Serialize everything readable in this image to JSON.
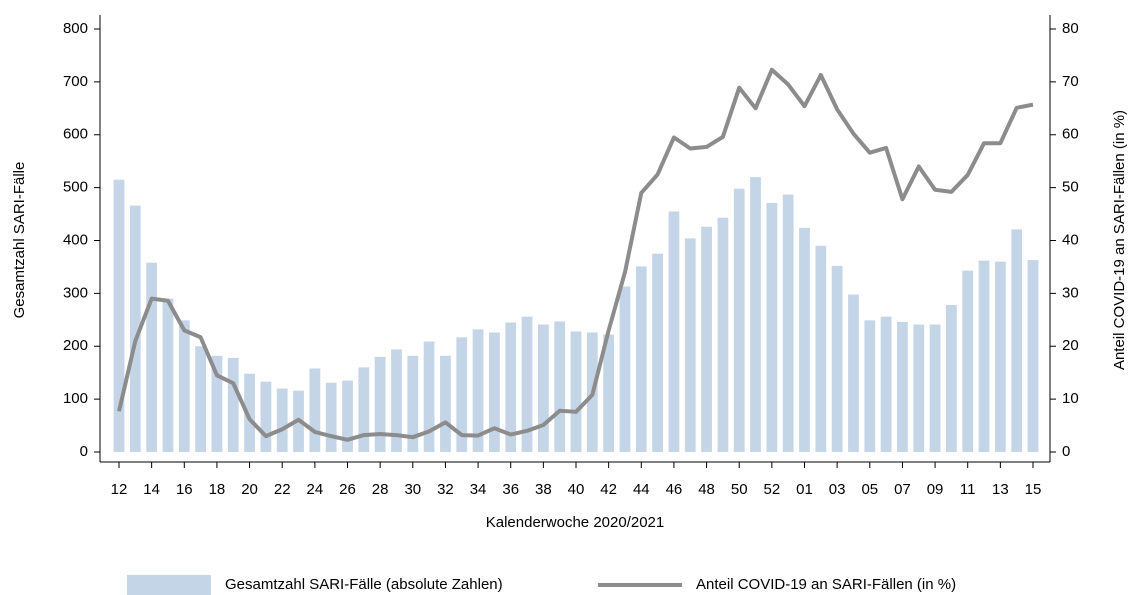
{
  "chart_data": {
    "type": "bar-line",
    "x_label": "Kalenderwoche 2020/2021",
    "y_label": "Gesamtzahl SARI-Fälle",
    "y2_label": "Anteil COVID-19 an SARI-Fällen (in %)",
    "categories": [
      "12",
      null,
      "14",
      null,
      "16",
      null,
      "18",
      null,
      "20",
      null,
      "22",
      null,
      "24",
      null,
      "26",
      null,
      "28",
      null,
      "30",
      null,
      "32",
      null,
      "34",
      null,
      "36",
      null,
      "38",
      null,
      "40",
      null,
      "42",
      null,
      "44",
      null,
      "46",
      null,
      "48",
      null,
      "50",
      null,
      "52",
      null,
      "01",
      null,
      "03",
      null,
      "05",
      null,
      "07",
      null,
      "09",
      null,
      "11",
      null,
      "13",
      null,
      "15"
    ],
    "series": [
      {
        "name": "Gesamtzahl SARI-Fälle (absolute Zahlen)",
        "type": "bar",
        "color": "#c5d5e8",
        "values": [
          515,
          466,
          358,
          290,
          249,
          200,
          182,
          178,
          148,
          133,
          120,
          116,
          158,
          131,
          135,
          160,
          180,
          194,
          182,
          209,
          182,
          217,
          232,
          226,
          245,
          256,
          241,
          247,
          228,
          226,
          222,
          313,
          351,
          375,
          455,
          404,
          426,
          443,
          498,
          520,
          471,
          487,
          424,
          390,
          352,
          298,
          249,
          256,
          246,
          241,
          241,
          278,
          343,
          362,
          360,
          421,
          363
        ]
      },
      {
        "name": "Anteil COVID-19 an SARI-Fällen (in %)",
        "type": "line",
        "axis": "y2",
        "color": "#8c8c8c",
        "values": [
          7.7,
          21,
          29,
          28.6,
          23,
          21.7,
          14.5,
          13,
          6.2,
          3,
          4.3,
          6.1,
          3.8,
          3,
          2.3,
          3.2,
          3.4,
          3.2,
          2.8,
          3.9,
          5.6,
          3.2,
          3.1,
          4.5,
          3.3,
          4,
          5.1,
          7.8,
          7.6,
          10.8,
          23,
          34,
          49,
          52.5,
          59.5,
          57.4,
          57.7,
          59.6,
          68.9,
          65,
          72.3,
          69.5,
          65.4,
          71.3,
          64.8,
          60.2,
          56.6,
          57.5,
          47.8,
          54,
          49.6,
          49.2,
          52.4,
          58.4,
          58.4,
          65.1,
          65.7
        ]
      }
    ],
    "ylim": [
      0,
      800
    ],
    "yticks": [
      0,
      100,
      200,
      300,
      400,
      500,
      600,
      700,
      800
    ],
    "y2lim": [
      0,
      80
    ],
    "y2ticks": [
      0,
      10,
      20,
      30,
      40,
      50,
      60,
      70,
      80
    ]
  }
}
